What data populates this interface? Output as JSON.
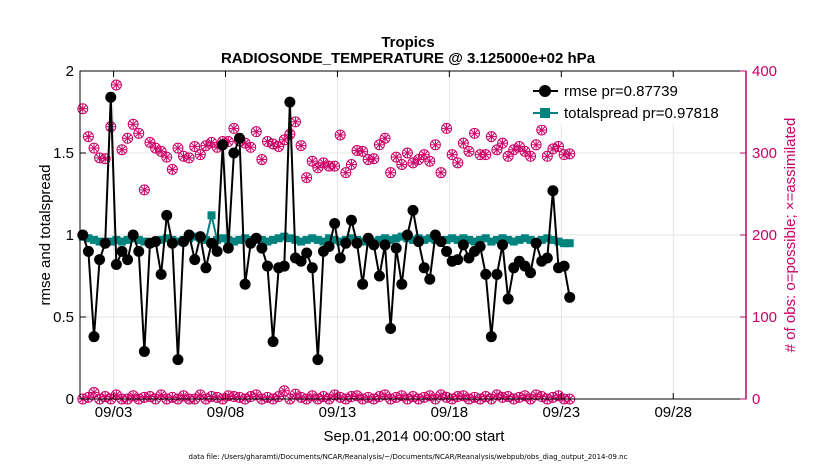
{
  "colors": {
    "rmse": "#000000",
    "totalspread": "#00827f",
    "obs": "#cc0066",
    "axis_left": "#000000",
    "axis_right": "#cc0066",
    "grid": "#e6e6e6"
  },
  "chart_data": {
    "type": "line",
    "title": "Tropics",
    "subtitle": "RADIOSONDE_TEMPERATURE @ 3.125000e+02 hPa",
    "xlabel": "Sep.01,2014 00:00:00 start",
    "ylabel_left": "rmse and totalspread",
    "ylabel_right": "# of obs: o=possible; ×=assimilated",
    "footer": "data file: /Users/gharamti/Documents/NCAR/Reanalysis/~/Documents/NCAR/Reanalysis/webpub/obs_diag_output_2014-09.nc",
    "grid": true,
    "legend_position": "top-right",
    "xlim": [
      1.5,
      31.25
    ],
    "ylim_left": [
      0,
      2
    ],
    "ylim_right": [
      0,
      400
    ],
    "x_ticks": [
      {
        "value": 3,
        "label": "09/03"
      },
      {
        "value": 8,
        "label": "09/08"
      },
      {
        "value": 13,
        "label": "09/13"
      },
      {
        "value": 18,
        "label": "09/18"
      },
      {
        "value": 23,
        "label": "09/23"
      },
      {
        "value": 28,
        "label": "09/28"
      }
    ],
    "y_ticks_left": [
      {
        "value": 0,
        "label": "0"
      },
      {
        "value": 0.5,
        "label": "0.5"
      },
      {
        "value": 1,
        "label": "1"
      },
      {
        "value": 1.5,
        "label": "1.5"
      },
      {
        "value": 2,
        "label": "2"
      }
    ],
    "y_ticks_right": [
      {
        "value": 0,
        "label": "0"
      },
      {
        "value": 100,
        "label": "100"
      },
      {
        "value": 200,
        "label": "200"
      },
      {
        "value": 300,
        "label": "300"
      },
      {
        "value": 400,
        "label": "400"
      }
    ],
    "x_start": 1.625,
    "x_step": 0.25,
    "rmse": {
      "name": "rmse pr=0.87739",
      "values": [
        1.0,
        0.9,
        0.38,
        0.85,
        0.95,
        1.84,
        0.82,
        0.9,
        0.85,
        1.0,
        0.9,
        0.29,
        0.95,
        0.96,
        0.76,
        1.12,
        0.95,
        0.24,
        0.96,
        1.0,
        0.85,
        0.99,
        0.8,
        0.95,
        0.9,
        1.55,
        0.92,
        1.5,
        1.59,
        0.7,
        0.95,
        0.98,
        0.92,
        0.81,
        0.35,
        0.8,
        0.81,
        1.81,
        0.86,
        0.84,
        0.89,
        0.8,
        0.24,
        0.9,
        0.93,
        1.07,
        0.86,
        0.95,
        1.09,
        0.95,
        0.7,
        0.98,
        0.94,
        0.75,
        0.94,
        0.43,
        0.92,
        0.7,
        1.0,
        1.15,
        0.96,
        0.8,
        0.73,
        1.0,
        0.96,
        0.9,
        0.84,
        0.85,
        0.94,
        0.86,
        0.9,
        0.93,
        0.76,
        0.38,
        0.76,
        0.94,
        0.61,
        0.8,
        0.84,
        0.81,
        0.77,
        0.95,
        0.84,
        0.86,
        1.27,
        0.8,
        0.81,
        0.62
      ]
    },
    "totalspread": {
      "name": "totalspread pr=0.97818",
      "values": [
        0.99,
        0.98,
        0.97,
        0.96,
        0.95,
        0.96,
        0.97,
        0.96,
        0.97,
        0.98,
        0.97,
        0.96,
        0.95,
        0.96,
        0.97,
        0.98,
        0.97,
        0.96,
        0.97,
        0.98,
        0.99,
        0.98,
        0.97,
        1.12,
        0.97,
        0.98,
        0.97,
        0.96,
        0.97,
        0.98,
        0.97,
        0.98,
        0.97,
        0.96,
        0.97,
        0.98,
        0.99,
        0.98,
        0.97,
        0.96,
        0.97,
        0.98,
        0.97,
        0.96,
        0.98,
        0.97,
        0.96,
        0.97,
        0.98,
        0.97,
        0.96,
        0.97,
        0.96,
        0.97,
        0.98,
        0.97,
        0.98,
        0.99,
        0.98,
        0.97,
        0.98,
        0.97,
        0.98,
        0.97,
        0.96,
        0.97,
        0.98,
        0.97,
        0.98,
        0.97,
        0.96,
        0.97,
        0.98,
        0.96,
        0.97,
        0.98,
        0.97,
        0.96,
        0.97,
        0.98,
        0.97,
        0.96,
        0.97,
        0.98,
        0.97,
        0.96,
        0.95,
        0.95
      ]
    },
    "obs_possible_upper": [
      354,
      320,
      306,
      294,
      293,
      332,
      383,
      304,
      318,
      335,
      324,
      255,
      313,
      306,
      302,
      295,
      280,
      306,
      296,
      294,
      308,
      298,
      309,
      313,
      307,
      314,
      314,
      330,
      315,
      312,
      307,
      326,
      292,
      314,
      311,
      308,
      316,
      323,
      338,
      309,
      270,
      290,
      282,
      288,
      284,
      284,
      322,
      276,
      286,
      303,
      302,
      292,
      293,
      310,
      318,
      276,
      295,
      286,
      300,
      288,
      292,
      298,
      290,
      310,
      276,
      330,
      298,
      288,
      312,
      302,
      324,
      298,
      298,
      320,
      304,
      312,
      296,
      304,
      308,
      302,
      296,
      310,
      328,
      296,
      305,
      308,
      298,
      299
    ],
    "obs_possible_lower": [
      0,
      2,
      8,
      0,
      3,
      0,
      5,
      0,
      0,
      4,
      0,
      2,
      3,
      0,
      5,
      0,
      2,
      0,
      4,
      0,
      0,
      5,
      0,
      3,
      2,
      0,
      4,
      3,
      2,
      0,
      3,
      5,
      0,
      2,
      0,
      3,
      10,
      0,
      6,
      2,
      0,
      4,
      0,
      3,
      0,
      5,
      2,
      0,
      3,
      4,
      0,
      2,
      0,
      3,
      5,
      0,
      2,
      4,
      0,
      3,
      0,
      2,
      4,
      0,
      5,
      2,
      0,
      3,
      4,
      0,
      2,
      0,
      3,
      0,
      5,
      2,
      3,
      0,
      2,
      4,
      0,
      5,
      3,
      0,
      2,
      4,
      0,
      0
    ]
  }
}
